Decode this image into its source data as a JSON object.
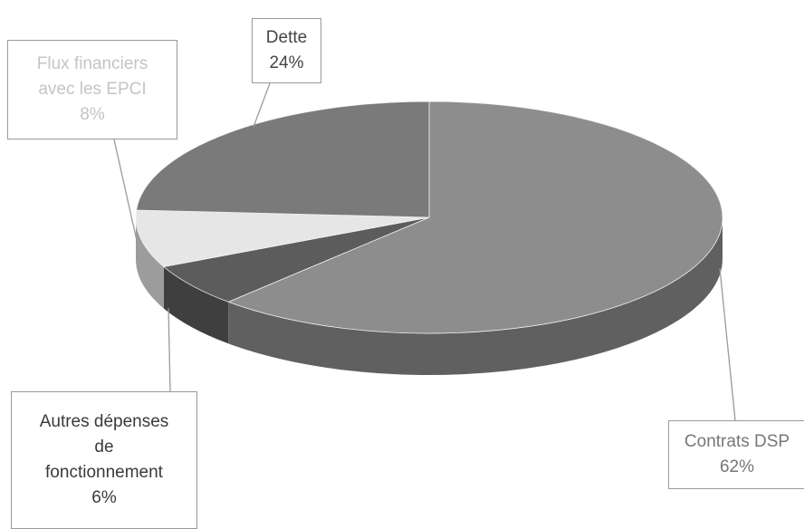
{
  "chart_data": {
    "type": "pie",
    "title": "",
    "style": "3d",
    "slices": [
      {
        "label": "Contrats DSP",
        "value": 62,
        "display": "62%",
        "color": "#8d8d8d",
        "text_color": "#777777"
      },
      {
        "label": "Autres dépenses\nde\nfonctionnement",
        "value": 6,
        "display": "6%",
        "color": "#5c5c5c",
        "text_color": "#3a3a3a"
      },
      {
        "label": "Flux financiers\navec les EPCI",
        "value": 8,
        "display": "8%",
        "color": "#e6e6e6",
        "text_color": "#c4c4c4"
      },
      {
        "label": "Dette",
        "value": 24,
        "display": "24%",
        "color": "#7a7a7a",
        "text_color": "#444444"
      }
    ]
  }
}
